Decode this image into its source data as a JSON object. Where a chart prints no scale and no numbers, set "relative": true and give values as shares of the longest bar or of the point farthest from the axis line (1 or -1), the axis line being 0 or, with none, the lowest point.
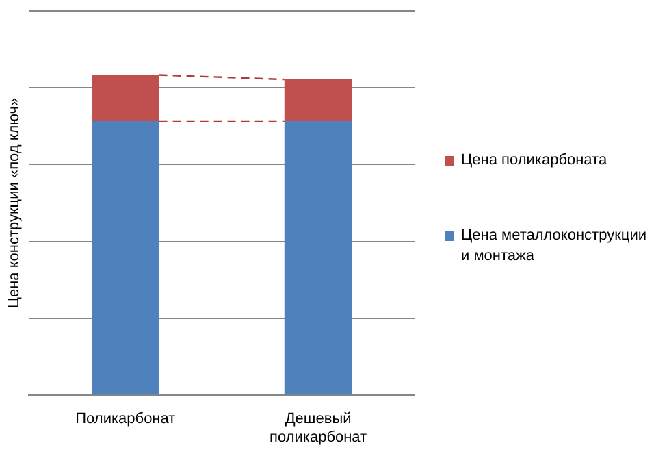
{
  "chart_data": {
    "type": "bar",
    "stacked": true,
    "relative": true,
    "ylabel": "Цена конструкции «под ключ»",
    "categories": [
      "Поликарбонат",
      "Дешевый поликарбонат"
    ],
    "series": [
      {
        "name": "Цена металлоконструкции и монтажа",
        "color": "#4f81bd",
        "values": [
          0.856,
          0.856
        ]
      },
      {
        "name": "Цена поликарбоната",
        "color": "#c0504d",
        "values": [
          0.144,
          0.13
        ]
      }
    ],
    "grid": "y",
    "legend": "right"
  }
}
